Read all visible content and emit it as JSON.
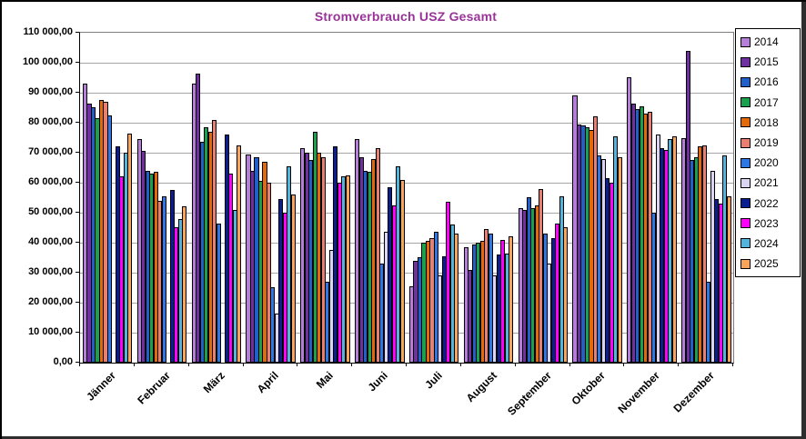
{
  "title": "Stromverbrauch USZ Gesamt",
  "title_color": "#993399",
  "chart_data": {
    "type": "bar",
    "title": "Stromverbrauch USZ Gesamt",
    "xlabel": "",
    "ylabel": "",
    "ylim": [
      0,
      110000
    ],
    "ytick_step": 10000,
    "grid": true,
    "legend_position": "right",
    "ytick_labels": [
      "0,00",
      "10 000,00",
      "20 000,00",
      "30 000,00",
      "40 000,00",
      "50 000,00",
      "60 000,00",
      "70 000,00",
      "80 000,00",
      "90 000,00",
      "100 000,00",
      "110 000,00"
    ],
    "categories": [
      "Jänner",
      "Februar",
      "März",
      "April",
      "Mai",
      "Juni",
      "Juli",
      "August",
      "September",
      "Oktober",
      "November",
      "Dezember"
    ],
    "series": [
      {
        "name": "2014",
        "color": "#B57FD9",
        "values": [
          93000,
          74500,
          93000,
          69500,
          71500,
          74500,
          25500,
          38500,
          51500,
          89000,
          95000,
          75000
        ]
      },
      {
        "name": "2015",
        "color": "#7030A0",
        "values": [
          86500,
          70500,
          96500,
          64000,
          70000,
          68500,
          34000,
          31000,
          51000,
          79500,
          86500,
          104000
        ]
      },
      {
        "name": "2016",
        "color": "#2060C8",
        "values": [
          85000,
          64000,
          73500,
          68500,
          67500,
          64000,
          35000,
          39500,
          55000,
          79000,
          84500,
          67500
        ]
      },
      {
        "name": "2017",
        "color": "#1BA04E",
        "values": [
          81500,
          63000,
          78500,
          60500,
          77000,
          63500,
          40000,
          40000,
          51500,
          78500,
          85500,
          68500
        ]
      },
      {
        "name": "2018",
        "color": "#E4690B",
        "values": [
          87500,
          63500,
          77000,
          67000,
          70000,
          68000,
          40500,
          40500,
          52500,
          77500,
          83000,
          72000
        ]
      },
      {
        "name": "2019",
        "color": "#E97F71",
        "values": [
          87000,
          54000,
          81000,
          60000,
          68500,
          71500,
          41500,
          44500,
          58000,
          82000,
          83500,
          72500
        ]
      },
      {
        "name": "2020",
        "color": "#2E78E6",
        "values": [
          82500,
          55500,
          46500,
          25000,
          27000,
          33000,
          43500,
          43000,
          43000,
          69000,
          50000,
          27000
        ]
      },
      {
        "name": "2021",
        "color": "#DAD5F2",
        "values": [
          null,
          null,
          null,
          16500,
          37500,
          43500,
          29000,
          29000,
          33000,
          68000,
          76000,
          64000
        ]
      },
      {
        "name": "2022",
        "color": "#0A1E8F",
        "values": [
          72000,
          57500,
          76000,
          54500,
          72000,
          58500,
          35500,
          36000,
          41500,
          61500,
          71500,
          54500
        ]
      },
      {
        "name": "2023",
        "color": "#FF00FF",
        "values": [
          62000,
          45000,
          63000,
          50000,
          60000,
          52500,
          53500,
          41000,
          46500,
          60000,
          71000,
          53000
        ]
      },
      {
        "name": "2024",
        "color": "#53B5DC",
        "values": [
          70000,
          48000,
          51000,
          65500,
          62000,
          65500,
          46000,
          36500,
          55500,
          75500,
          74500,
          69000
        ]
      },
      {
        "name": "2025",
        "color": "#F9A45B",
        "values": [
          76500,
          52000,
          72500,
          56000,
          62500,
          61000,
          43000,
          42000,
          45000,
          68500,
          75500,
          55500
        ]
      }
    ]
  }
}
